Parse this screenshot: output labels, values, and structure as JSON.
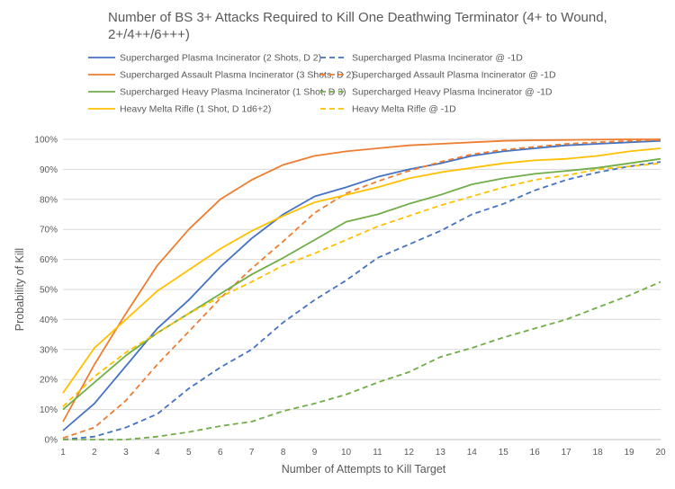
{
  "chart_data": {
    "type": "line",
    "title_lines": [
      "Number of BS 3+ Attacks Required to Kill One Deathwing Terminator (4+ to Wound,",
      "2+/4++/6+++)"
    ],
    "xlabel": "Number of Attempts to Kill Target",
    "ylabel": "Probability of Kill",
    "x": [
      1,
      2,
      3,
      4,
      5,
      6,
      7,
      8,
      9,
      10,
      11,
      12,
      13,
      14,
      15,
      16,
      17,
      18,
      19,
      20
    ],
    "xlim": [
      1,
      20
    ],
    "ylim": [
      0,
      100
    ],
    "y_ticks": [
      "0%",
      "10%",
      "20%",
      "30%",
      "40%",
      "50%",
      "60%",
      "70%",
      "80%",
      "90%",
      "100%"
    ],
    "grid": true,
    "legend_position": "top",
    "series": [
      {
        "name": "Supercharged Plasma Incinerator (2 Shots, D 2)",
        "color": "#4472C4",
        "dashed": false,
        "values": [
          3,
          12,
          24.5,
          37,
          46.5,
          57.5,
          67,
          75,
          81,
          84,
          87.5,
          90,
          92,
          94.5,
          96,
          97,
          98,
          98.5,
          99,
          99.5
        ]
      },
      {
        "name": "Supercharged Plasma Incinerator @ -1D",
        "color": "#4472C4",
        "dashed": true,
        "values": [
          0,
          1,
          4,
          8.5,
          17,
          24,
          30,
          39,
          46.5,
          53,
          60.5,
          65,
          69.5,
          75,
          78.5,
          83,
          86.5,
          89,
          91,
          92.5
        ]
      },
      {
        "name": "Supercharged Assault Plasma Incinerator (3 Shots, D 2)",
        "color": "#ED7D31",
        "dashed": false,
        "values": [
          6,
          25,
          42,
          58,
          70,
          80,
          86.5,
          91.5,
          94.5,
          96,
          97,
          98,
          98.5,
          99,
          99.5,
          99.7,
          99.8,
          99.9,
          100,
          100
        ]
      },
      {
        "name": "Supercharged Assault Plasma Incinerator @ -1D",
        "color": "#ED7D31",
        "dashed": true,
        "values": [
          0.5,
          4,
          13,
          25,
          36,
          47,
          57,
          66,
          75.5,
          82,
          86,
          89.5,
          92.5,
          95,
          96.5,
          97.5,
          98.5,
          99,
          99.5,
          99.8
        ]
      },
      {
        "name": "Supercharged Heavy Plasma Incinerator (1 Shot, D 3)",
        "color": "#70AD47",
        "dashed": false,
        "values": [
          10,
          19,
          28,
          35.5,
          42,
          48.5,
          55,
          60.5,
          66.5,
          72.5,
          75,
          78.5,
          81.5,
          85,
          87,
          88.5,
          89.5,
          90.5,
          92,
          93.5
        ]
      },
      {
        "name": "Supercharged Heavy Plasma Incinerator @ -1D",
        "color": "#70AD47",
        "dashed": true,
        "values": [
          0,
          0,
          0,
          1,
          2.5,
          4.5,
          6,
          9.5,
          12,
          15,
          19,
          22.5,
          27.5,
          30.5,
          34,
          37,
          40,
          44,
          48,
          52.5
        ]
      },
      {
        "name": "Heavy Melta Rifle (1 Shot, D 1d6+2)",
        "color": "#FFC000",
        "dashed": false,
        "values": [
          15.5,
          30.5,
          40,
          49.5,
          56.5,
          63.5,
          69.5,
          74.5,
          79,
          81.5,
          84,
          87,
          89,
          90.5,
          92,
          93,
          93.5,
          94.5,
          96,
          97
        ]
      },
      {
        "name": "Heavy Melta Rifle @ -1D",
        "color": "#FFC000",
        "dashed": true,
        "values": [
          11,
          21,
          29,
          35.5,
          42,
          47.5,
          52.5,
          58,
          62,
          66.5,
          71,
          74.5,
          78,
          81,
          84,
          86.5,
          88,
          90,
          91,
          92
        ]
      }
    ]
  }
}
